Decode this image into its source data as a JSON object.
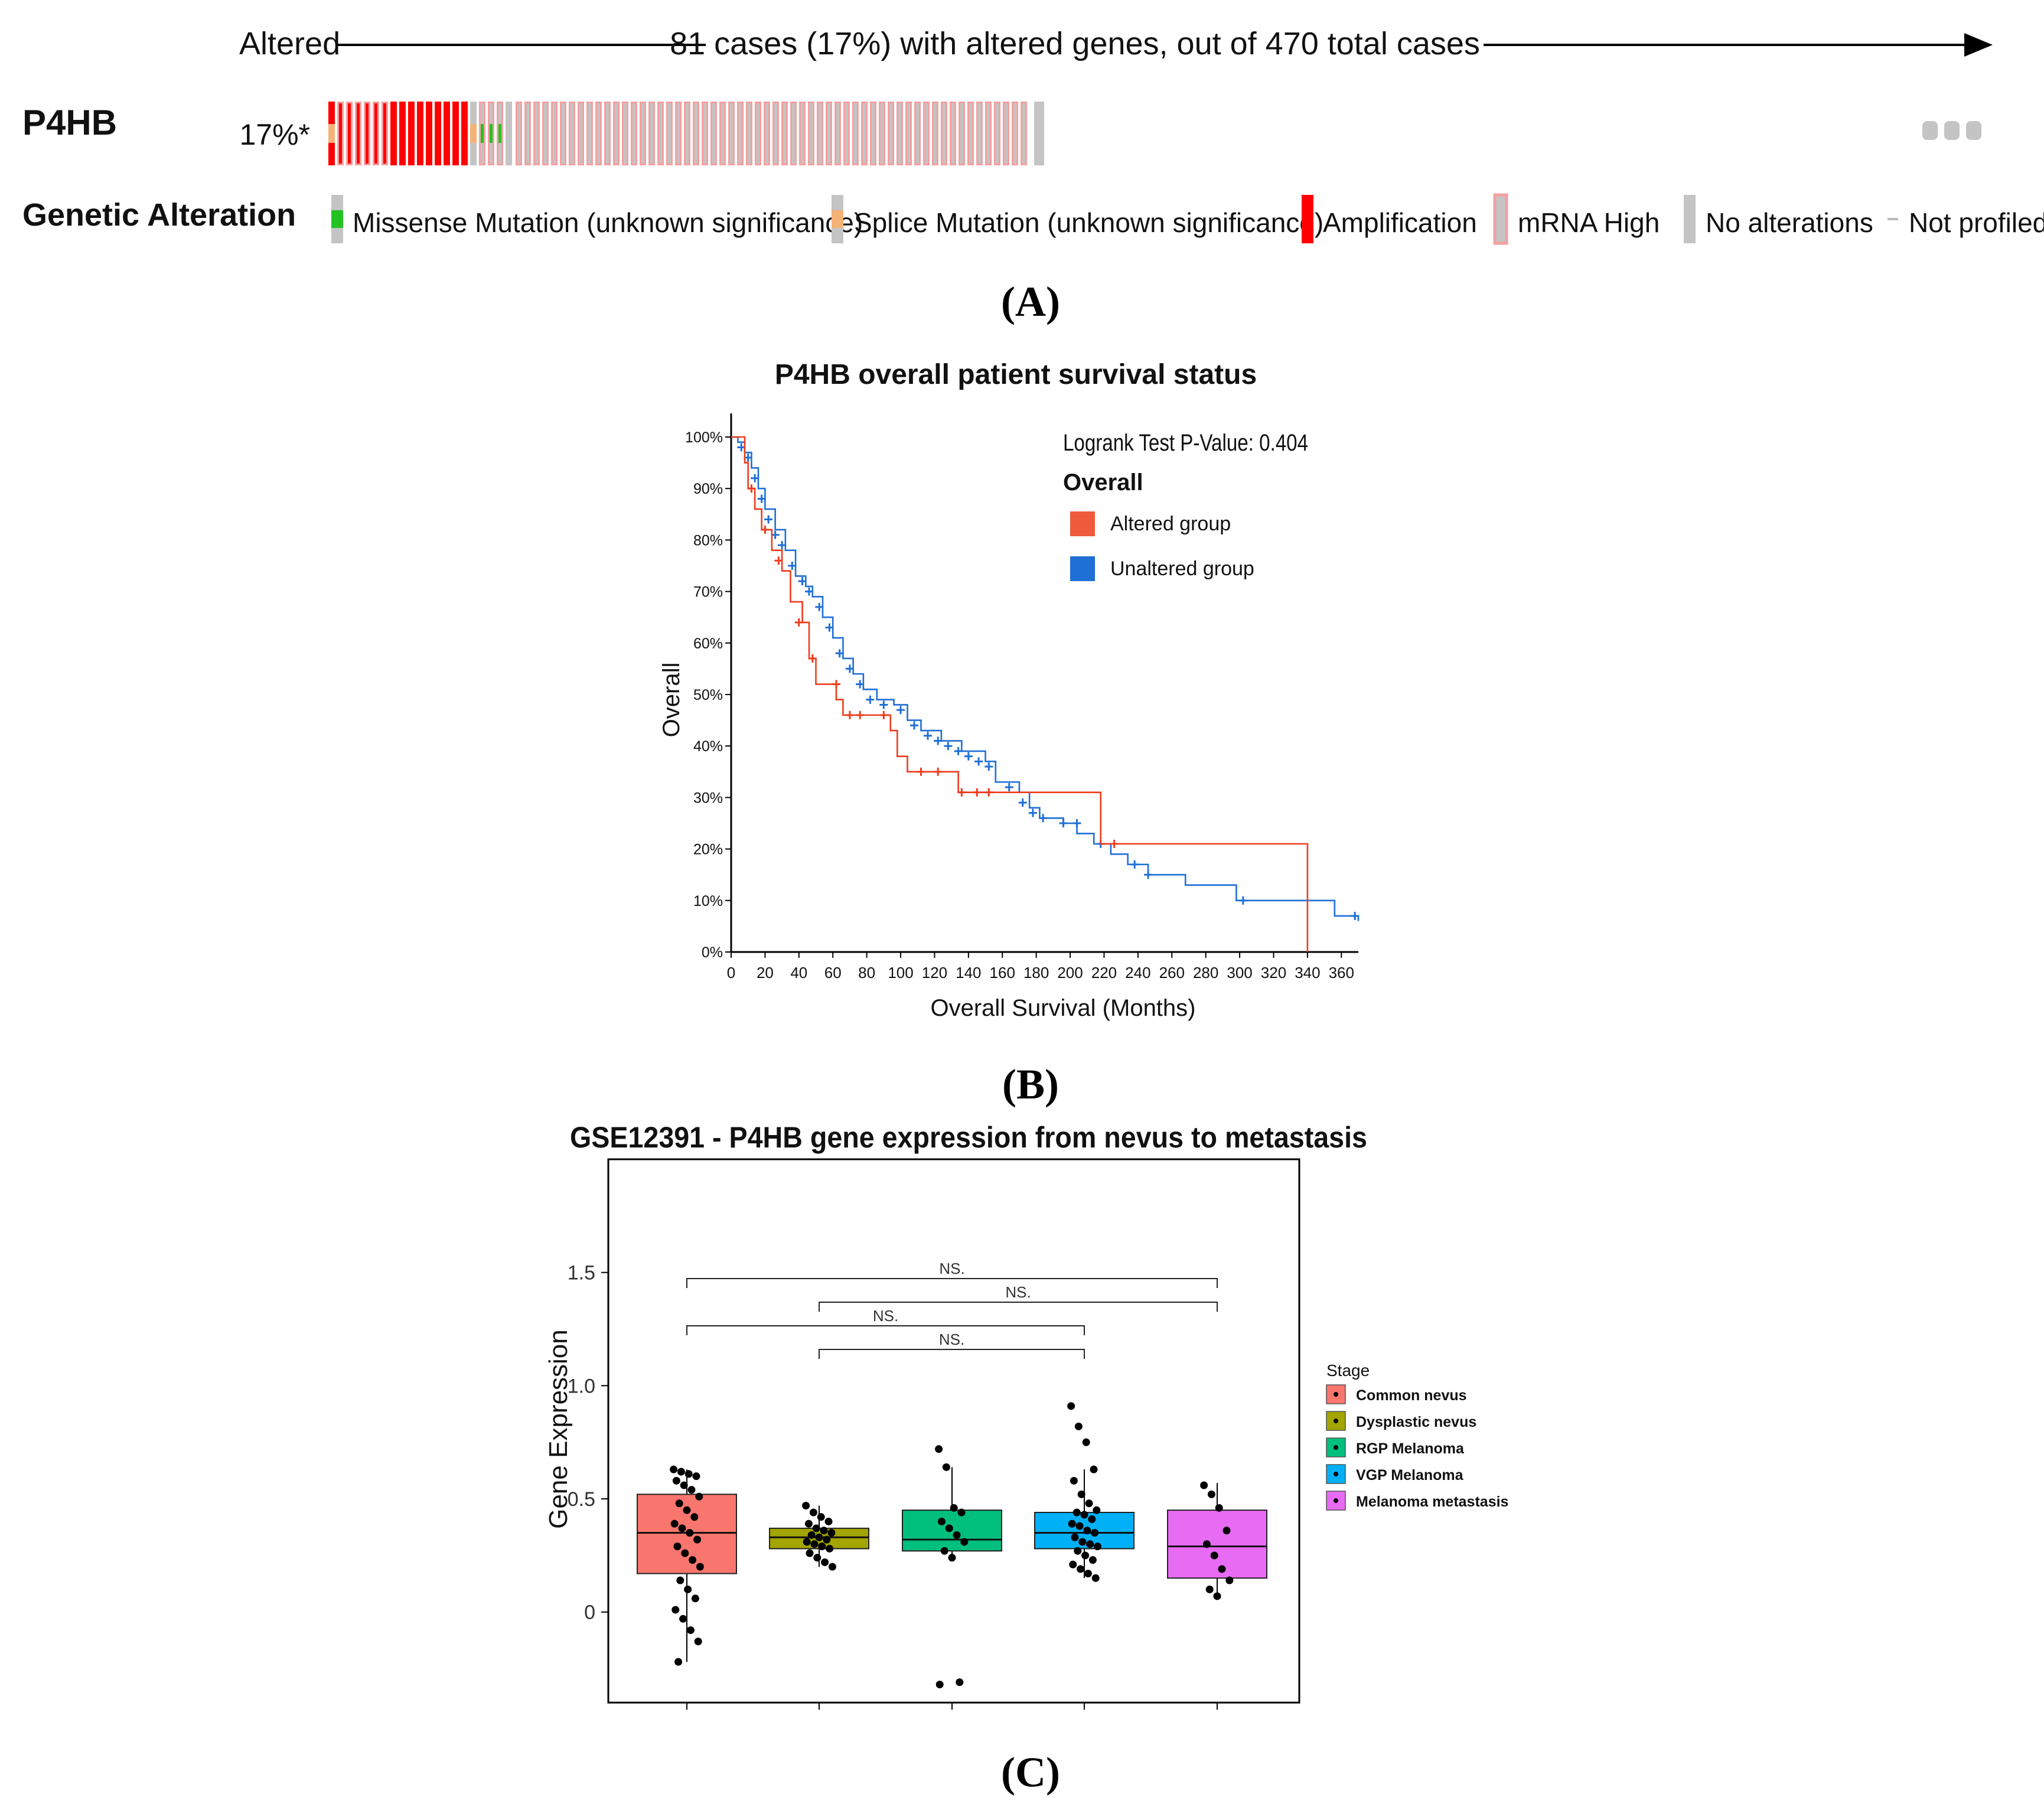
{
  "colors": {
    "amplification": "#ff0000",
    "mrna_high_border": "#f4a0a0",
    "no_alteration": "#c4c4c4",
    "missense": "#22c322",
    "splice": "#f5b276",
    "altered_curve": "#ef3b1c",
    "unaltered_curve": "#1e6fd6",
    "stage_colors": [
      "#f8766d",
      "#a3a500",
      "#00bf7d",
      "#00b0f6",
      "#e76bf3"
    ]
  },
  "panel_a": {
    "altered_label": "Altered",
    "header_text": "81 cases (17%) with altered genes, out of 470 total cases",
    "gene": "P4HB",
    "percent": "17%*",
    "legend_title": "Genetic Alteration",
    "legend": [
      {
        "label": "Missense Mutation (unknown significance)",
        "icon": "missense-icon"
      },
      {
        "label": "Splice Mutation (unknown significance)",
        "icon": "splice-icon"
      },
      {
        "label": "Amplification",
        "icon": "amplification-icon"
      },
      {
        "label": "mRNA High",
        "icon": "mrna-high-icon"
      },
      {
        "label": "No alterations",
        "icon": "no-alteration-icon"
      },
      {
        "label": "Not profiled",
        "icon": "not-profiled-icon"
      }
    ],
    "panel_label": "(A)"
  },
  "panel_b": {
    "panel_label": "(B)"
  },
  "panel_c": {
    "panel_label": "(C)"
  },
  "chart_data": [
    {
      "type": "oncoprint",
      "gene": "P4HB",
      "altered_cases": 81,
      "altered_percent": 17,
      "total_cases": 470,
      "categories": [
        "Missense Mutation (unknown significance)",
        "Splice Mutation (unknown significance)",
        "Amplification",
        "mRNA High",
        "No alterations",
        "Not profiled"
      ],
      "columns": [
        {
          "base": "amp",
          "inner": "splice",
          "mrna": false
        },
        {
          "base": "amp",
          "inner": null,
          "mrna": true
        },
        {
          "base": "amp",
          "inner": null,
          "mrna": true
        },
        {
          "base": "amp",
          "inner": null,
          "mrna": true
        },
        {
          "base": "amp",
          "inner": null,
          "mrna": true
        },
        {
          "base": "amp",
          "inner": null,
          "mrna": true
        },
        {
          "base": "amp",
          "inner": null,
          "mrna": true
        },
        {
          "base": "amp",
          "inner": null,
          "mrna": false
        },
        {
          "base": "amp",
          "inner": null,
          "mrna": false
        },
        {
          "base": "amp",
          "inner": null,
          "mrna": false
        },
        {
          "base": "amp",
          "inner": null,
          "mrna": false
        },
        {
          "base": "amp",
          "inner": null,
          "mrna": false
        },
        {
          "base": "amp",
          "inner": null,
          "mrna": false
        },
        {
          "base": "amp",
          "inner": null,
          "mrna": false
        },
        {
          "base": "amp",
          "inner": null,
          "mrna": false
        },
        {
          "base": "amp",
          "inner": null,
          "mrna": false
        },
        {
          "base": "none",
          "inner": "splice",
          "mrna": false
        },
        {
          "base": "none",
          "inner": "missense",
          "mrna": true
        },
        {
          "base": "none",
          "inner": "missense",
          "mrna": true
        },
        {
          "base": "none",
          "inner": "missense",
          "mrna": true
        },
        {
          "base": "none",
          "inner": null,
          "mrna": false
        }
      ],
      "mrna_high_only_columns": 58,
      "not_profiled_dots": 3
    },
    {
      "type": "line",
      "title": "P4HB overall patient survival status",
      "xlabel": "Overall Survival (Months)",
      "ylabel": "Overall",
      "xlim": [
        0,
        370
      ],
      "ylim": [
        0,
        100
      ],
      "xticks": [
        0,
        20,
        40,
        60,
        80,
        100,
        120,
        140,
        160,
        180,
        200,
        220,
        240,
        260,
        280,
        300,
        320,
        340,
        360
      ],
      "yticks": [
        "0%",
        "10%",
        "20%",
        "30%",
        "40%",
        "50%",
        "60%",
        "70%",
        "80%",
        "90%",
        "100%"
      ],
      "logrank_text": "Logrank Test P-Value: 0.404",
      "legend_title": "Overall",
      "legend_position": "top-right",
      "series": [
        {
          "name": "Altered group",
          "x": [
            0,
            8,
            10,
            14,
            18,
            24,
            30,
            35,
            42,
            46,
            50,
            62,
            66,
            86,
            94,
            98,
            104,
            134,
            216,
            218,
            232,
            340,
            340
          ],
          "y": [
            100,
            95,
            90,
            86,
            82,
            78,
            74,
            68,
            64,
            57,
            52,
            49,
            46,
            46,
            43,
            38,
            35,
            31,
            31,
            21,
            21,
            21,
            0
          ],
          "censor": [
            [
              12,
              90
            ],
            [
              20,
              82
            ],
            [
              28,
              76
            ],
            [
              40,
              64
            ],
            [
              48,
              57
            ],
            [
              62,
              52
            ],
            [
              70,
              46
            ],
            [
              76,
              46
            ],
            [
              90,
              46
            ],
            [
              112,
              35
            ],
            [
              122,
              35
            ],
            [
              136,
              31
            ],
            [
              145,
              31
            ],
            [
              152,
              31
            ],
            [
              226,
              21
            ]
          ]
        },
        {
          "name": "Unaltered group",
          "x": [
            0,
            4,
            8,
            12,
            16,
            20,
            26,
            32,
            38,
            44,
            48,
            54,
            60,
            66,
            72,
            78,
            86,
            96,
            104,
            112,
            124,
            136,
            150,
            156,
            170,
            176,
            182,
            196,
            204,
            214,
            224,
            234,
            246,
            268,
            298,
            336,
            356,
            370
          ],
          "y": [
            100,
            99,
            97,
            94,
            90,
            86,
            82,
            78,
            73,
            71,
            69,
            65,
            61,
            57,
            54,
            51,
            49,
            48,
            45,
            43,
            41,
            39,
            37,
            33,
            31,
            28,
            26,
            25,
            23,
            21,
            19,
            17,
            15,
            13,
            10,
            10,
            7,
            6
          ],
          "censor": [
            [
              6,
              98
            ],
            [
              10,
              96
            ],
            [
              14,
              92
            ],
            [
              18,
              88
            ],
            [
              22,
              84
            ],
            [
              26,
              81
            ],
            [
              30,
              79
            ],
            [
              36,
              75
            ],
            [
              42,
              72
            ],
            [
              46,
              70
            ],
            [
              52,
              67
            ],
            [
              58,
              63
            ],
            [
              64,
              58
            ],
            [
              70,
              55
            ],
            [
              76,
              52
            ],
            [
              82,
              49
            ],
            [
              90,
              48
            ],
            [
              100,
              47
            ],
            [
              108,
              44
            ],
            [
              116,
              42
            ],
            [
              122,
              41
            ],
            [
              128,
              40
            ],
            [
              134,
              39
            ],
            [
              140,
              38
            ],
            [
              146,
              37
            ],
            [
              152,
              36
            ],
            [
              164,
              32
            ],
            [
              172,
              29
            ],
            [
              178,
              27
            ],
            [
              184,
              26
            ],
            [
              196,
              25
            ],
            [
              204,
              25
            ],
            [
              218,
              21
            ],
            [
              238,
              17
            ],
            [
              246,
              15
            ],
            [
              302,
              10
            ],
            [
              368,
              7
            ]
          ]
        }
      ]
    },
    {
      "type": "box",
      "title": "GSE12391 - P4HB gene expression from nevus to metastasis",
      "ylabel": "Gene Expression",
      "ylim": [
        -0.4,
        2.0
      ],
      "yticks": [
        "0",
        "0.5",
        "1.0",
        "1.5"
      ],
      "legend_title": "Stage",
      "legend_position": "right",
      "categories": [
        "Common nevus",
        "Dysplastic nevus",
        "RGP Melanoma",
        "VGP Melanoma",
        "Melanoma metastasis"
      ],
      "boxes": [
        {
          "q1": 0.17,
          "median": 0.35,
          "q3": 0.52,
          "whisker_low": -0.22,
          "whisker_high": 0.63
        },
        {
          "q1": 0.28,
          "median": 0.33,
          "q3": 0.37,
          "whisker_low": 0.2,
          "whisker_high": 0.47
        },
        {
          "q1": 0.27,
          "median": 0.32,
          "q3": 0.45,
          "whisker_low": 0.24,
          "whisker_high": 0.64
        },
        {
          "q1": 0.28,
          "median": 0.35,
          "q3": 0.44,
          "whisker_low": 0.15,
          "whisker_high": 0.63
        },
        {
          "q1": 0.15,
          "median": 0.29,
          "q3": 0.45,
          "whisker_low": 0.07,
          "whisker_high": 0.57
        }
      ],
      "points": [
        [
          0.63,
          0.62,
          0.61,
          0.6,
          0.58,
          0.56,
          0.54,
          0.51,
          0.48,
          0.45,
          0.42,
          0.39,
          0.37,
          0.35,
          0.32,
          0.29,
          0.26,
          0.23,
          0.2,
          0.14,
          0.1,
          0.06,
          0.01,
          -0.03,
          -0.08,
          -0.13,
          -0.22
        ],
        [
          0.47,
          0.44,
          0.42,
          0.4,
          0.39,
          0.37,
          0.36,
          0.35,
          0.34,
          0.33,
          0.32,
          0.31,
          0.3,
          0.29,
          0.28,
          0.26,
          0.24,
          0.22,
          0.2
        ],
        [
          0.72,
          0.64,
          0.46,
          0.44,
          0.4,
          0.37,
          0.34,
          0.31,
          0.27,
          0.24,
          -0.31,
          -0.32
        ],
        [
          0.91,
          0.82,
          0.75,
          0.63,
          0.58,
          0.52,
          0.48,
          0.45,
          0.44,
          0.43,
          0.41,
          0.39,
          0.38,
          0.36,
          0.35,
          0.33,
          0.31,
          0.3,
          0.29,
          0.27,
          0.25,
          0.23,
          0.21,
          0.19,
          0.17,
          0.15
        ],
        [
          0.56,
          0.52,
          0.46,
          0.36,
          0.3,
          0.25,
          0.19,
          0.14,
          0.1,
          0.07
        ]
      ],
      "comparisons": [
        {
          "from": 0,
          "to": 4,
          "label": "NS."
        },
        {
          "from": 1,
          "to": 4,
          "label": "NS."
        },
        {
          "from": 0,
          "to": 3,
          "label": "NS."
        },
        {
          "from": 1,
          "to": 3,
          "label": "NS."
        }
      ]
    }
  ]
}
